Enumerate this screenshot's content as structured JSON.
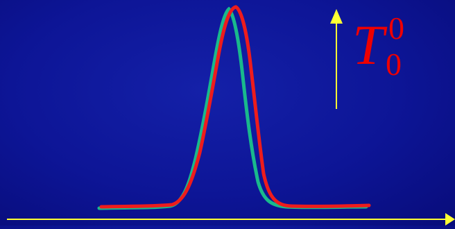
{
  "label": {
    "symbol": "T",
    "superscript": "0",
    "subscript": "0"
  },
  "colors": {
    "background": "#0d1596",
    "axis": "#ffff33",
    "label": "#ee0000",
    "curve_a": "#19b98c",
    "curve_b": "#ee1c1c"
  }
}
